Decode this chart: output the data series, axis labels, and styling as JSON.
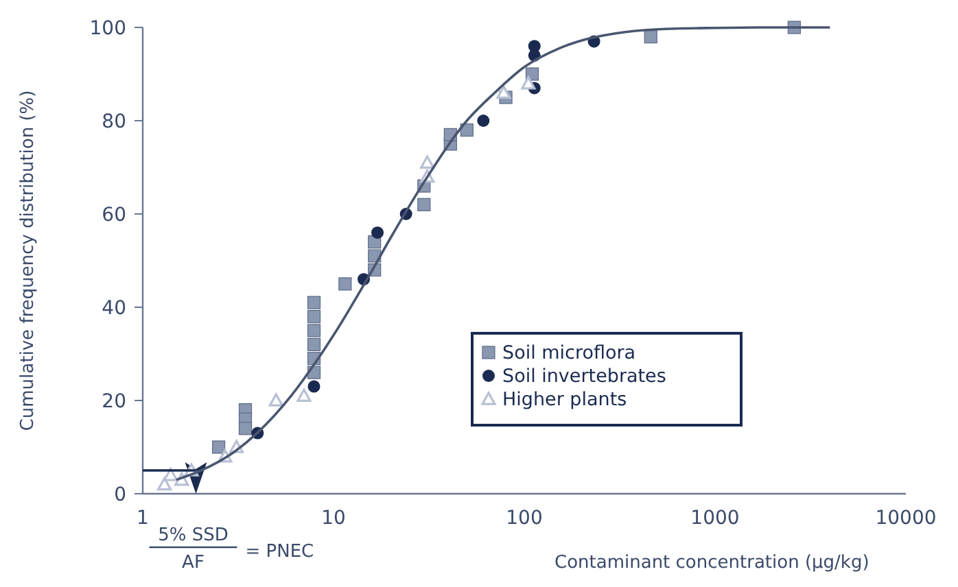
{
  "chart_data": {
    "type": "scatter",
    "xlabel": "Contaminant concentration (µg/kg)",
    "ylabel": "Cumulative frequency distribution (%)",
    "log": "x",
    "xlim": [
      1,
      10000
    ],
    "xticks": [
      1,
      10,
      100,
      1000,
      10000
    ],
    "ylim": [
      0,
      100
    ],
    "yticks": [
      0,
      20,
      40,
      60,
      80,
      100
    ],
    "grid": false,
    "legend": "bottom right",
    "series": [
      {
        "name": "Soil microflora",
        "color": "#8a97b0",
        "marker": "square",
        "x": [
          2.5,
          3.45,
          3.45,
          3.45,
          7.9,
          7.9,
          7.9,
          7.9,
          7.9,
          7.9,
          11.5,
          16.4,
          16.4,
          16.4,
          29.8,
          29.8,
          41,
          41,
          50,
          80,
          110,
          460,
          2600
        ],
        "values": [
          10,
          18,
          16,
          14,
          41,
          38,
          35,
          32,
          29,
          26,
          45,
          54,
          51,
          48,
          66,
          62,
          75,
          77,
          78,
          85,
          90,
          98,
          100
        ]
      },
      {
        "name": "Soil invertebrates",
        "color": "#1a2a50",
        "marker": "circle",
        "x": [
          4,
          7.9,
          14.4,
          17,
          24,
          61,
          113,
          113,
          113,
          232
        ],
        "values": [
          13,
          23,
          46,
          56,
          60,
          80,
          87,
          96,
          94,
          97
        ]
      },
      {
        "name": "Higher plants",
        "color": "#b8c0d4",
        "marker": "triangle",
        "x": [
          1.3,
          1.4,
          1.6,
          1.8,
          2.7,
          3.1,
          5,
          7,
          31,
          31,
          78,
          105
        ],
        "values": [
          2,
          4,
          3,
          5,
          8,
          10,
          20,
          21,
          68,
          71,
          86,
          88
        ]
      },
      {
        "type": "line",
        "color": "#1a2a50",
        "marker": "none",
        "line_style": "solid",
        "x": [
          1,
          1.9
        ],
        "values": [
          5,
          5
        ]
      },
      {
        "type": "line",
        "color": "#4a5670",
        "marker": "none",
        "line_style": "solid",
        "x": [
          1.5,
          2,
          3,
          4,
          6,
          8,
          10,
          15,
          20,
          30,
          50,
          70,
          100,
          150,
          200,
          300,
          500,
          1000,
          2000,
          4000
        ],
        "values": [
          3,
          4.9,
          8.9,
          13.1,
          21,
          28,
          34,
          46,
          55,
          67,
          80,
          86,
          91.5,
          95.4,
          97.2,
          98.7,
          99.6,
          99.9,
          100,
          100
        ]
      }
    ],
    "annotations": [
      "5% SSD",
      "AF",
      "= PNEC"
    ]
  }
}
